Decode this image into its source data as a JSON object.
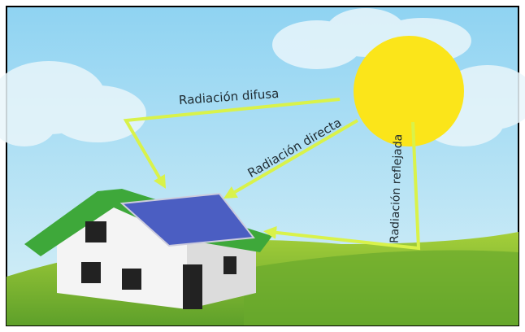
{
  "arrows": [
    {
      "label": "Radiación difusa"
    },
    {
      "label": "Radiación directa"
    },
    {
      "label": "Radiación reflejada"
    }
  ]
}
